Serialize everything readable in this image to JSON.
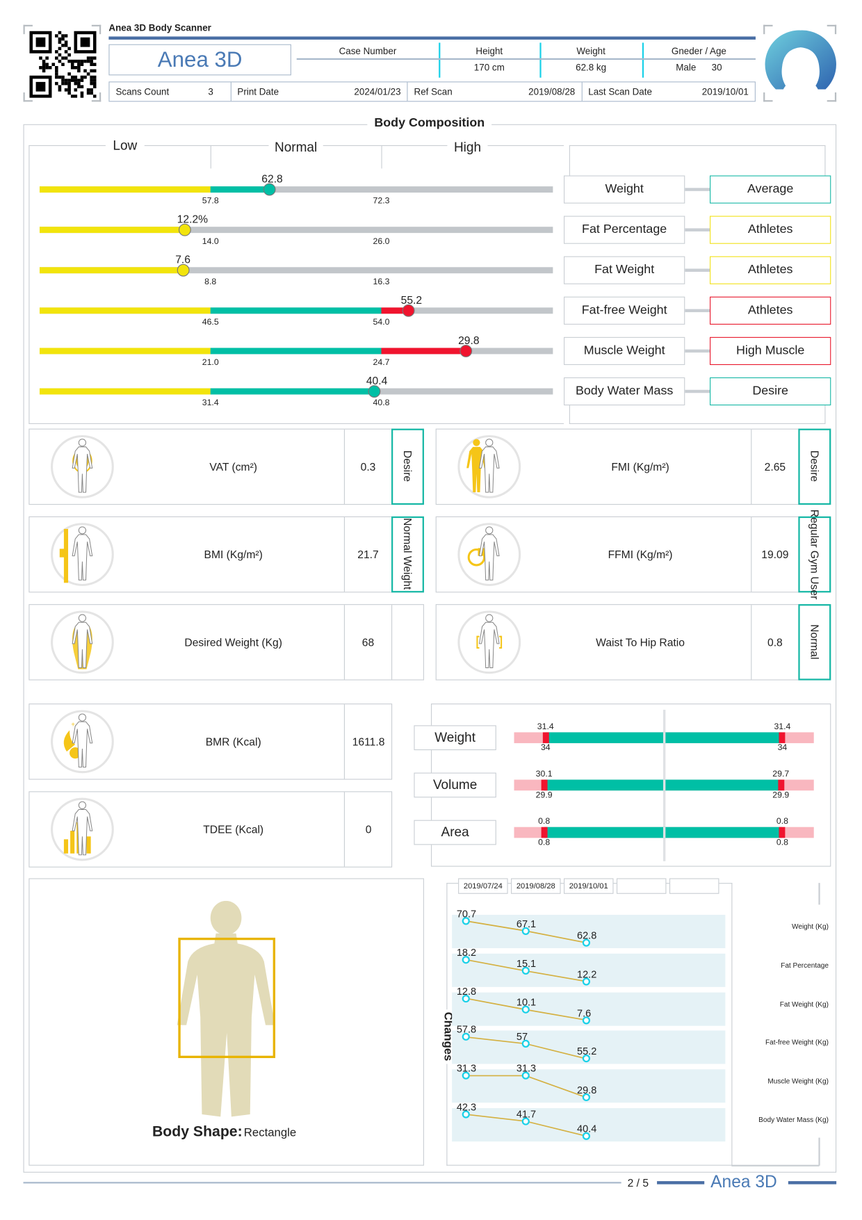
{
  "header": {
    "app_title": "Anea 3D Body Scanner",
    "brand": "Anea 3D",
    "columns": [
      {
        "label": "Case Number",
        "value": ""
      },
      {
        "label": "Height",
        "value": "170 cm"
      },
      {
        "label": "Weight",
        "value": "62.8 kg"
      },
      {
        "label": "Gneder / Age",
        "value": "Male      30"
      }
    ],
    "info": [
      {
        "label": "Scans Count",
        "value": "3"
      },
      {
        "label": "Print Date",
        "value": "2024/01/23"
      },
      {
        "label": "Ref Scan",
        "value": "2019/08/28"
      },
      {
        "label": "Last Scan Date",
        "value": "2019/10/01"
      }
    ],
    "qr_icon": "qr-code-icon",
    "logo_icon": "user-silhouette-logo-icon"
  },
  "body_composition": {
    "title": "Body Composition",
    "zones": [
      "Low",
      "Normal",
      "High"
    ],
    "rows": [
      {
        "label": "Weight",
        "value": 62.8,
        "display": "62.8",
        "low": 57.8,
        "high": 72.3,
        "status": "Average",
        "status_color": "#16b8a6"
      },
      {
        "label": "Fat Percentage",
        "value": 12.2,
        "display": "12.2%",
        "low": 14.0,
        "high": 26.0,
        "status": "Athletes",
        "status_color": "#f2e21a"
      },
      {
        "label": "Fat Weight",
        "value": 7.6,
        "display": "7.6",
        "low": 8.8,
        "high": 16.3,
        "status": "Athletes",
        "status_color": "#f2e21a"
      },
      {
        "label": "Fat-free Weight",
        "value": 55.2,
        "display": "55.2",
        "low": 46.5,
        "high": 54.0,
        "status": "Athletes",
        "status_color": "#e8182c"
      },
      {
        "label": "Muscle Weight",
        "value": 29.8,
        "display": "29.8",
        "low": 21.0,
        "high": 24.7,
        "status": "High Muscle",
        "status_color": "#e8182c"
      },
      {
        "label": "Body Water Mass",
        "value": 40.4,
        "display": "40.4",
        "low": 31.4,
        "high": 40.8,
        "status": "Desire",
        "status_color": "#16b8a6"
      }
    ],
    "colors": {
      "low": "#f2e40c",
      "normal": "#00bfa5",
      "high": "#f0142e",
      "track": "#c2c6ca"
    }
  },
  "indices": [
    {
      "label": "VAT (cm²)",
      "value": "0.3",
      "status": "Desire",
      "icon": "vat-body-icon"
    },
    {
      "label": "FMI (Kg/m²)",
      "value": "2.65",
      "status": "Desire",
      "icon": "fmi-body-icon"
    },
    {
      "label": "BMI (Kg/m²)",
      "value": "21.7",
      "status": "Normal Weight",
      "icon": "bmi-ruler-body-icon"
    },
    {
      "label": "FFMI (Kg/m²)",
      "value": "19.09",
      "status": "Regular Gym User",
      "icon": "ffmi-pie-body-icon"
    },
    {
      "label": "Desired Weight (Kg)",
      "value": "68",
      "status": "",
      "icon": "desired-weight-body-icon"
    },
    {
      "label": "Waist To Hip Ratio",
      "value": "0.8",
      "status": "Normal",
      "icon": "waist-hip-body-icon"
    }
  ],
  "energy": [
    {
      "label": "BMR (Kcal)",
      "value": "1611.8",
      "icon": "bmr-flame-body-icon"
    },
    {
      "label": "TDEE (Kcal)",
      "value": "0",
      "icon": "tdee-bars-body-icon"
    }
  ],
  "symmetry": {
    "rows": [
      {
        "label": "Weight",
        "left_top": "31.4",
        "left_bottom": "34",
        "right_top": "31.4",
        "right_bottom": "34",
        "left_fill": 0.21,
        "right_fill": 0.21
      },
      {
        "label": "Volume",
        "left_top": "30.1",
        "left_bottom": "29.9",
        "right_top": "29.7",
        "right_bottom": "29.9",
        "left_fill": 0.2,
        "right_fill": 0.22
      },
      {
        "label": "Area",
        "left_top": "0.8",
        "left_bottom": "0.8",
        "right_top": "0.8",
        "right_bottom": "0.8",
        "left_fill": 0.2,
        "right_fill": 0.21
      }
    ]
  },
  "body_shape": {
    "label": "Body Shape:",
    "value": "Rectangle"
  },
  "changes": {
    "title": "Changes",
    "dates": [
      "2019/07/24",
      "2019/08/28",
      "2019/10/01",
      "",
      ""
    ],
    "series": [
      {
        "name": "Weight (Kg)",
        "values": [
          70.7,
          67.1,
          62.8
        ]
      },
      {
        "name": "Fat Percentage",
        "values": [
          18.2,
          15.1,
          12.2
        ]
      },
      {
        "name": "Fat Weight (Kg)",
        "values": [
          12.8,
          10.1,
          7.6
        ]
      },
      {
        "name": "Fat-free Weight (Kg)",
        "values": [
          57.8,
          57,
          55.2
        ]
      },
      {
        "name": "Muscle Weight (Kg)",
        "values": [
          31.3,
          31.3,
          29.8
        ]
      },
      {
        "name": "Body Water Mass (Kg)",
        "values": [
          42.3,
          41.7,
          40.4
        ]
      }
    ]
  },
  "footer": {
    "page": "2 / 5",
    "brand": "Anea 3D"
  }
}
